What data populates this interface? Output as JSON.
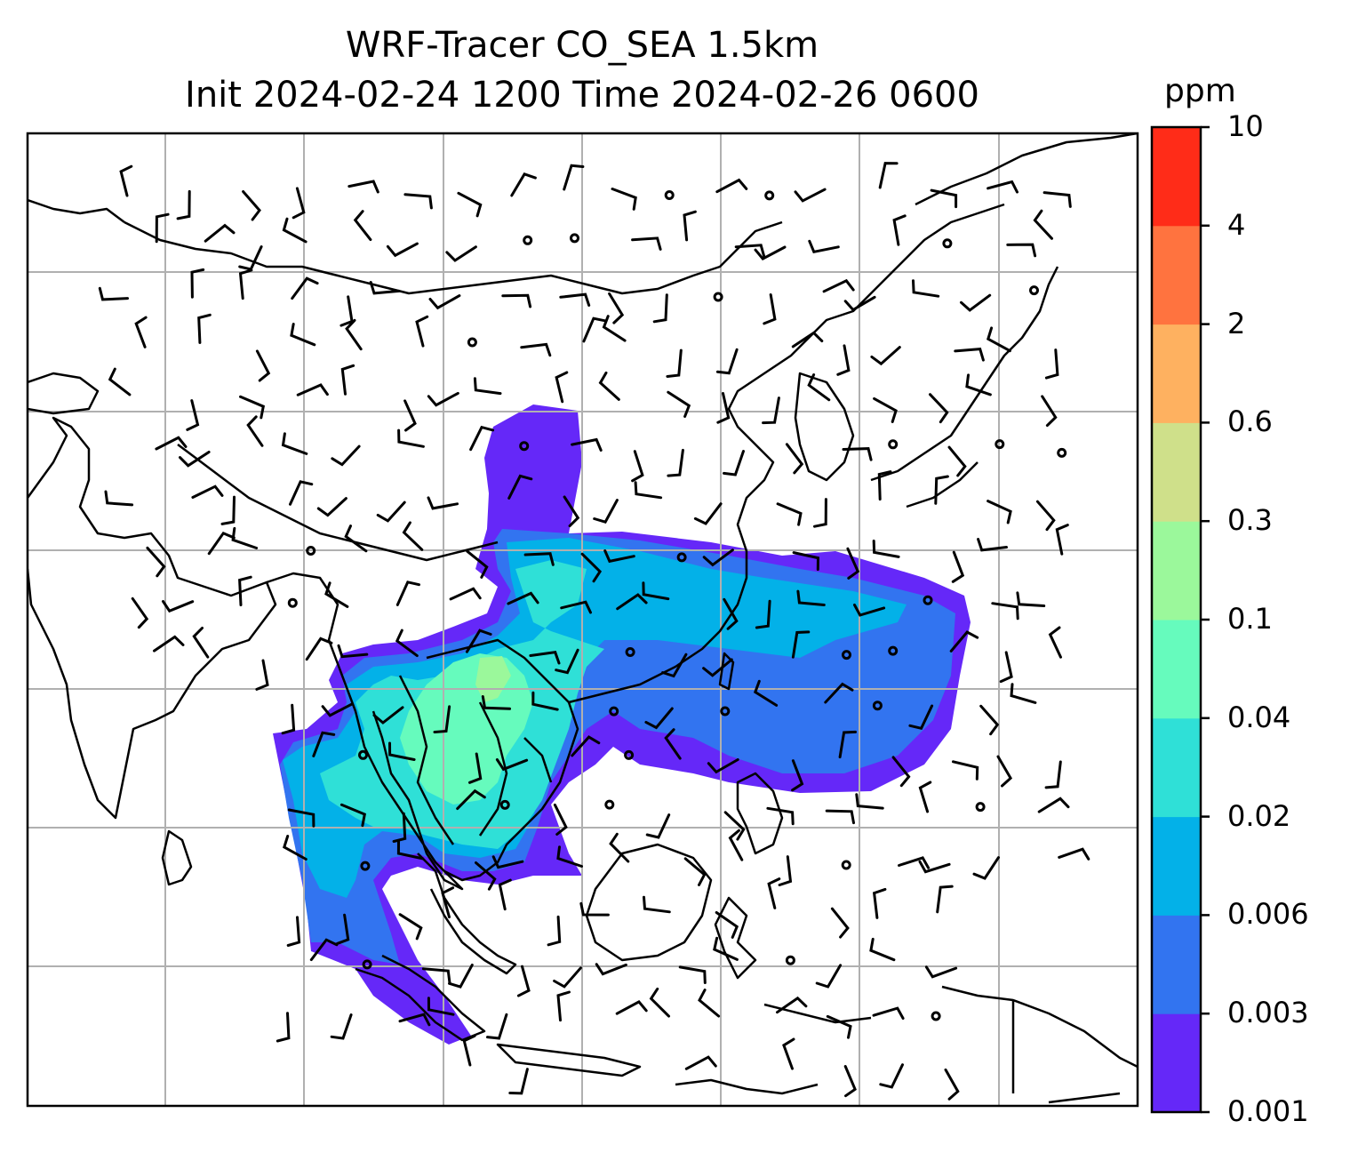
{
  "title": {
    "line1": "WRF-Tracer CO_SEA 1.5km",
    "line2": "Init 2024-02-24 1200 Time 2024-02-26 0600"
  },
  "colorbar": {
    "units": "ppm",
    "ticks": [
      "0.001",
      "0.003",
      "0.006",
      "0.02",
      "0.04",
      "0.1",
      "0.3",
      "0.6",
      "2",
      "4",
      "10"
    ],
    "colors": [
      "#6528f8",
      "#3274f0",
      "#03b1e8",
      "#2fe0d7",
      "#66fbbd",
      "#9bf89b",
      "#cfe08a",
      "#feb160",
      "#ff733f",
      "#ff2c18"
    ]
  },
  "map": {
    "gridlines": true,
    "field_name": "CO tracer concentration",
    "wind_barbs": "black"
  }
}
